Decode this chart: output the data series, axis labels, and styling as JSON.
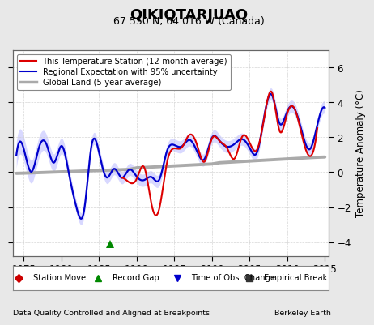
{
  "title": "QIKIQTARJUAQ",
  "subtitle": "67.550 N, 64.016 W (Canada)",
  "ylabel": "Temperature Anomaly (°C)",
  "footer_left": "Data Quality Controlled and Aligned at Breakpoints",
  "footer_right": "Berkeley Earth",
  "xlim": [
    1973.5,
    2015.5
  ],
  "ylim": [
    -4.8,
    7.0
  ],
  "yticks": [
    -4,
    -2,
    0,
    2,
    4,
    6
  ],
  "xticks": [
    1975,
    1980,
    1985,
    1990,
    1995,
    2000,
    2005,
    2010,
    2015
  ],
  "background_color": "#e8e8e8",
  "plot_bg_color": "#ffffff",
  "grid_color": "#cccccc",
  "title_fontsize": 13,
  "subtitle_fontsize": 9,
  "tick_fontsize": 8.5,
  "ylabel_fontsize": 8.5,
  "red_color": "#dd0000",
  "blue_color": "#0000cc",
  "blue_fill": "#aaaaff",
  "grey_color": "#aaaaaa",
  "green_marker_color": "#008800",
  "record_gap_x": 1986.5,
  "station_start_year": 1987.5
}
